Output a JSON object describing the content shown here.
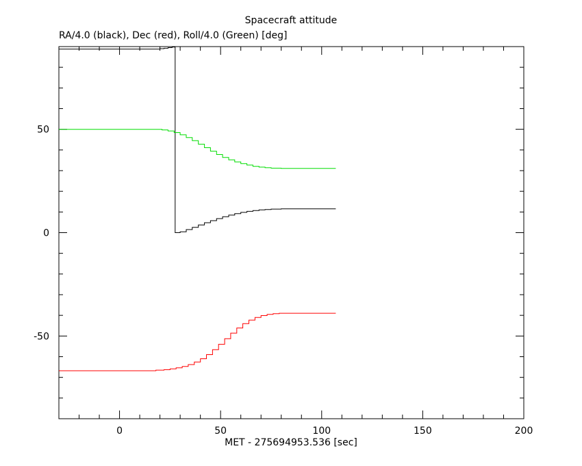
{
  "chart_data": {
    "type": "line",
    "title": "Spacecraft attitude",
    "subtitle": "RA/4.0 (black), Dec (red), Roll/4.0 (Green) [deg]",
    "xlabel": "MET - 275694953.536 [sec]",
    "ylabel": "",
    "xlim": [
      -30,
      200
    ],
    "ylim": [
      -90,
      90
    ],
    "xticks": [
      0,
      50,
      100,
      150,
      200
    ],
    "yticks": [
      -50,
      0,
      50
    ],
    "grid": false,
    "step": true,
    "series": [
      {
        "name": "RA/4.0",
        "color": "#000000",
        "x": [
          -30,
          18,
          20,
          22,
          24,
          26,
          27.5,
          27.5,
          30,
          33,
          36,
          39,
          42,
          45,
          48,
          51,
          54,
          57,
          60,
          63,
          66,
          69,
          72,
          75,
          80,
          85,
          90,
          95,
          100,
          107
        ],
        "y": [
          88.8,
          88.8,
          89.0,
          89.2,
          89.5,
          89.8,
          90.0,
          0.0,
          0.4,
          1.5,
          2.6,
          3.7,
          4.8,
          5.8,
          6.8,
          7.7,
          8.5,
          9.2,
          9.8,
          10.3,
          10.7,
          11.0,
          11.2,
          11.4,
          11.5,
          11.5,
          11.5,
          11.5,
          11.5,
          11.5
        ]
      },
      {
        "name": "Dec",
        "color": "#ff0000",
        "x": [
          -30,
          18,
          22,
          25,
          28,
          31,
          34,
          37,
          40,
          43,
          46,
          49,
          52,
          55,
          58,
          61,
          64,
          67,
          70,
          73,
          76,
          79,
          82,
          85,
          90,
          95,
          100,
          107
        ],
        "y": [
          -66.8,
          -66.5,
          -66.3,
          -65.9,
          -65.4,
          -64.7,
          -63.8,
          -62.6,
          -61.0,
          -59.0,
          -56.6,
          -54.0,
          -51.3,
          -48.6,
          -46.1,
          -44.0,
          -42.3,
          -41.0,
          -40.1,
          -39.5,
          -39.2,
          -39.0,
          -39.0,
          -39.0,
          -39.0,
          -39.0,
          -39.0,
          -39.0
        ]
      },
      {
        "name": "Roll/4.0",
        "color": "#00dd00",
        "x": [
          -30,
          18,
          21,
          24,
          27,
          30,
          33,
          36,
          39,
          42,
          45,
          48,
          51,
          54,
          57,
          60,
          63,
          66,
          69,
          72,
          75,
          80,
          85,
          90,
          95,
          100,
          107
        ],
        "y": [
          50.0,
          50.0,
          49.7,
          49.2,
          48.4,
          47.3,
          46.0,
          44.5,
          42.8,
          41.1,
          39.4,
          37.8,
          36.4,
          35.2,
          34.2,
          33.4,
          32.7,
          32.1,
          31.7,
          31.4,
          31.2,
          31.1,
          31.1,
          31.1,
          31.1,
          31.1,
          31.1
        ]
      }
    ]
  }
}
